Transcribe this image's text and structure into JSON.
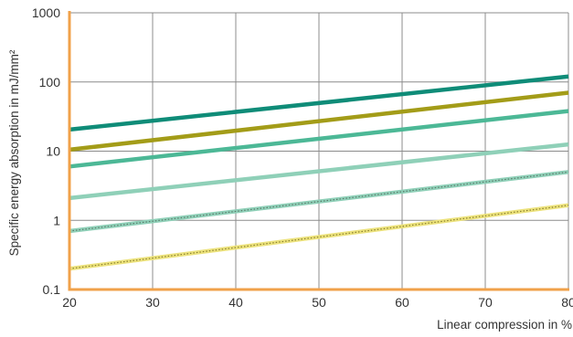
{
  "chart_data": {
    "type": "line",
    "title": "",
    "xlabel": "Linear compression in %",
    "ylabel": "Specific energy absorption in mJ/mm²",
    "xlim": [
      20,
      80
    ],
    "ylim": [
      0.1,
      1000
    ],
    "yscale": "log",
    "grid": true,
    "x_ticks": [
      20,
      30,
      40,
      50,
      60,
      70,
      80
    ],
    "x_tick_labels": [
      "20",
      "30",
      "40",
      "50",
      "60",
      "70",
      "80"
    ],
    "y_ticks": [
      0.1,
      1,
      10,
      100,
      1000
    ],
    "y_tick_labels": [
      "0.1",
      "1",
      "10",
      "100",
      "1000"
    ],
    "colors": {
      "axis": "#f0a14a",
      "grid": "#8c8c8c"
    },
    "series": [
      {
        "x": [
          20,
          80
        ],
        "values": [
          20.5,
          120
        ],
        "color": "#0f8c78",
        "style": "solid"
      },
      {
        "x": [
          20,
          80
        ],
        "values": [
          10.5,
          70
        ],
        "color": "#a39c18",
        "style": "solid"
      },
      {
        "x": [
          20,
          80
        ],
        "values": [
          6,
          38
        ],
        "color": "#4cb896",
        "style": "solid"
      },
      {
        "x": [
          20,
          80
        ],
        "values": [
          2.1,
          12.5
        ],
        "color": "#8fd0b8",
        "style": "solid"
      },
      {
        "x": [
          20,
          80
        ],
        "values": [
          0.7,
          5
        ],
        "color": "#8fd0b8",
        "style": "dotted",
        "dot_color": "#5a7a6a"
      },
      {
        "x": [
          20,
          80
        ],
        "values": [
          0.2,
          1.65
        ],
        "color": "#ece27c",
        "style": "dotted",
        "dot_color": "#8a8030"
      }
    ]
  }
}
